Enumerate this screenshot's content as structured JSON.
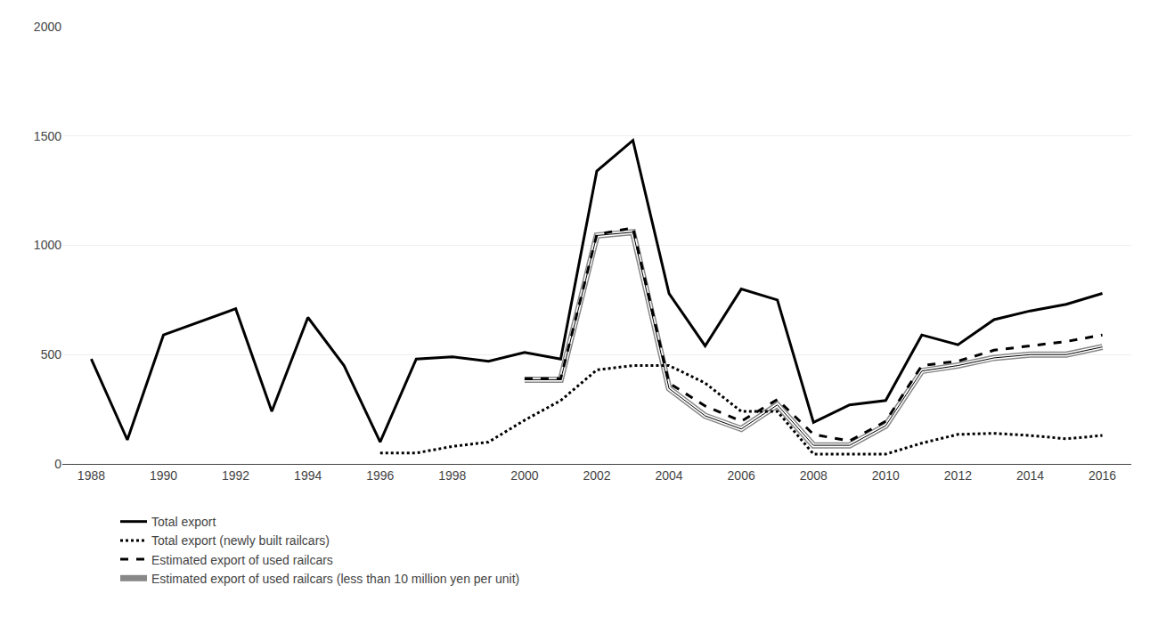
{
  "chart_data": {
    "type": "line",
    "x": [
      1988,
      1989,
      1990,
      1991,
      1992,
      1993,
      1994,
      1995,
      1996,
      1997,
      1998,
      1999,
      2000,
      2001,
      2002,
      2003,
      2004,
      2005,
      2006,
      2007,
      2008,
      2009,
      2010,
      2011,
      2012,
      2013,
      2014,
      2015,
      2016
    ],
    "series": [
      {
        "name": "Total export",
        "color": "#000000",
        "line_style": "solid",
        "values": [
          480,
          110,
          590,
          650,
          710,
          240,
          670,
          450,
          100,
          480,
          490,
          470,
          510,
          480,
          1340,
          1480,
          780,
          540,
          800,
          750,
          190,
          270,
          290,
          590,
          545,
          660,
          700,
          730,
          780
        ]
      },
      {
        "name": "Total export (newly built railcars)",
        "color": "#000000",
        "line_style": "dotted",
        "values": [
          null,
          null,
          null,
          null,
          null,
          null,
          null,
          null,
          50,
          50,
          80,
          100,
          200,
          290,
          430,
          450,
          450,
          370,
          240,
          240,
          45,
          45,
          45,
          95,
          135,
          140,
          130,
          115,
          130
        ]
      },
      {
        "name": "Estimated export of used railcars",
        "color": "#000000",
        "line_style": "dashed",
        "values": [
          null,
          null,
          null,
          null,
          null,
          null,
          null,
          null,
          null,
          null,
          null,
          null,
          390,
          390,
          1050,
          1080,
          370,
          265,
          195,
          295,
          135,
          105,
          195,
          450,
          470,
          520,
          540,
          560,
          590
        ]
      },
      {
        "name": "Estimated export of used railcars (less than 10 million yen per unit)",
        "color": "#000000",
        "line_style": "double",
        "values": [
          null,
          null,
          null,
          null,
          null,
          null,
          null,
          null,
          null,
          null,
          null,
          null,
          385,
          385,
          1045,
          1060,
          345,
          220,
          160,
          270,
          85,
          85,
          175,
          425,
          450,
          485,
          500,
          500,
          535
        ]
      }
    ],
    "xlim": [
      1987.2,
      2016.8
    ],
    "xticks": [
      1988,
      1990,
      1992,
      1994,
      1996,
      1998,
      2000,
      2002,
      2004,
      2006,
      2008,
      2010,
      2012,
      2014,
      2016
    ],
    "ylim": [
      0,
      2000
    ],
    "yticks": [
      0,
      500,
      1000,
      1500,
      2000
    ],
    "grid": true,
    "legend": "bottom"
  }
}
